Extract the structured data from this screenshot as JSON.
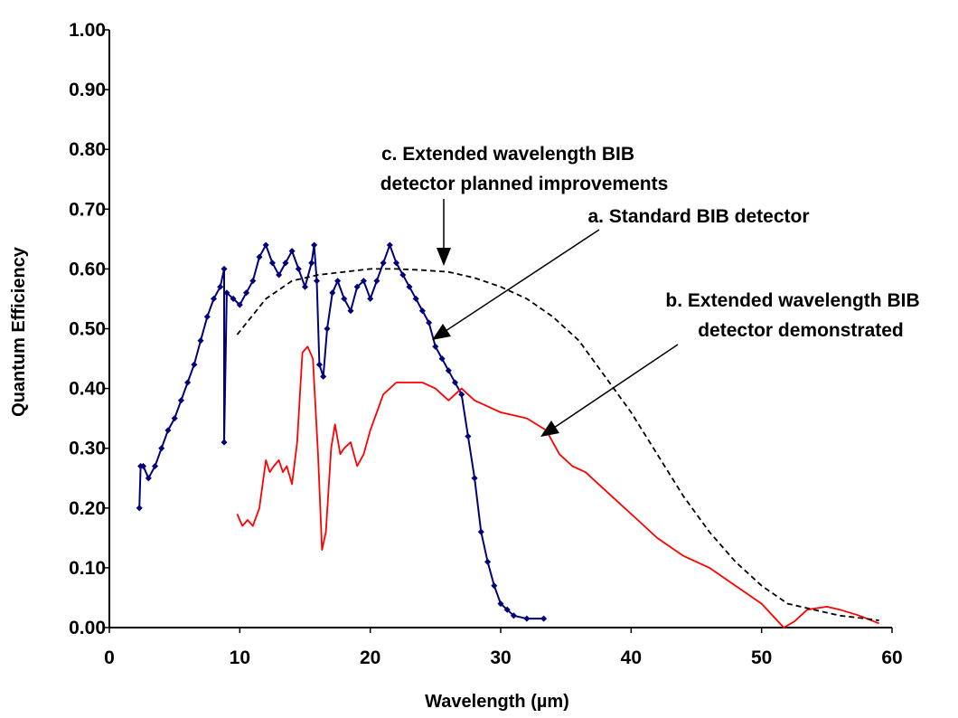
{
  "chart_data": {
    "type": "line",
    "title": "",
    "xlabel": "Wavelength (µm)",
    "ylabel": "Quantum Efficiency",
    "xlim": [
      0,
      60
    ],
    "ylim": [
      0,
      1.0
    ],
    "x_ticks": [
      "0",
      "10",
      "20",
      "30",
      "40",
      "50",
      "60"
    ],
    "y_ticks": [
      "0.00",
      "0.10",
      "0.20",
      "0.30",
      "0.40",
      "0.50",
      "0.60",
      "0.70",
      "0.80",
      "0.90",
      "1.00"
    ],
    "grid": false,
    "legend": "none",
    "series": [
      {
        "name": "a. Standard BIB detector",
        "color": "#00007a",
        "style": "line-with-markers",
        "points": [
          [
            2.3,
            0.2
          ],
          [
            2.4,
            0.27
          ],
          [
            2.6,
            0.27
          ],
          [
            3.0,
            0.25
          ],
          [
            3.5,
            0.27
          ],
          [
            4.0,
            0.3
          ],
          [
            4.5,
            0.33
          ],
          [
            5.0,
            0.35
          ],
          [
            5.5,
            0.38
          ],
          [
            6.0,
            0.41
          ],
          [
            6.5,
            0.44
          ],
          [
            7.0,
            0.48
          ],
          [
            7.5,
            0.52
          ],
          [
            8.0,
            0.55
          ],
          [
            8.5,
            0.57
          ],
          [
            8.8,
            0.6
          ],
          [
            8.8,
            0.31
          ],
          [
            9.0,
            0.56
          ],
          [
            9.5,
            0.55
          ],
          [
            10.0,
            0.54
          ],
          [
            10.5,
            0.56
          ],
          [
            11.0,
            0.58
          ],
          [
            11.5,
            0.62
          ],
          [
            12.0,
            0.64
          ],
          [
            12.5,
            0.61
          ],
          [
            13.0,
            0.59
          ],
          [
            13.5,
            0.61
          ],
          [
            14.0,
            0.63
          ],
          [
            14.5,
            0.6
          ],
          [
            15.0,
            0.57
          ],
          [
            15.5,
            0.61
          ],
          [
            15.7,
            0.64
          ],
          [
            15.9,
            0.58
          ],
          [
            16.1,
            0.44
          ],
          [
            16.4,
            0.42
          ],
          [
            16.7,
            0.5
          ],
          [
            17.1,
            0.56
          ],
          [
            17.5,
            0.58
          ],
          [
            18.0,
            0.55
          ],
          [
            18.5,
            0.53
          ],
          [
            19.0,
            0.57
          ],
          [
            19.5,
            0.58
          ],
          [
            20.0,
            0.55
          ],
          [
            20.5,
            0.58
          ],
          [
            21.0,
            0.61
          ],
          [
            21.5,
            0.64
          ],
          [
            22.0,
            0.61
          ],
          [
            22.5,
            0.59
          ],
          [
            23.0,
            0.57
          ],
          [
            23.5,
            0.55
          ],
          [
            24.0,
            0.53
          ],
          [
            24.5,
            0.51
          ],
          [
            25.0,
            0.47
          ],
          [
            25.5,
            0.45
          ],
          [
            26.0,
            0.43
          ],
          [
            26.5,
            0.41
          ],
          [
            27.0,
            0.39
          ],
          [
            27.5,
            0.32
          ],
          [
            28.0,
            0.25
          ],
          [
            28.5,
            0.16
          ],
          [
            29.0,
            0.11
          ],
          [
            29.5,
            0.07
          ],
          [
            30.0,
            0.04
          ],
          [
            30.5,
            0.03
          ],
          [
            31.0,
            0.02
          ],
          [
            32.0,
            0.015
          ],
          [
            33.3,
            0.015
          ]
        ]
      },
      {
        "name": "b. Extended wavelength BIB detector demonstrated",
        "color": "#ff0000",
        "style": "line",
        "points": [
          [
            9.8,
            0.19
          ],
          [
            10.2,
            0.17
          ],
          [
            10.6,
            0.18
          ],
          [
            11.0,
            0.17
          ],
          [
            11.5,
            0.2
          ],
          [
            12.0,
            0.28
          ],
          [
            12.3,
            0.26
          ],
          [
            12.6,
            0.27
          ],
          [
            13.0,
            0.28
          ],
          [
            13.3,
            0.26
          ],
          [
            13.6,
            0.27
          ],
          [
            14.0,
            0.24
          ],
          [
            14.4,
            0.31
          ],
          [
            14.8,
            0.46
          ],
          [
            15.2,
            0.47
          ],
          [
            15.6,
            0.45
          ],
          [
            16.0,
            0.29
          ],
          [
            16.3,
            0.13
          ],
          [
            16.6,
            0.16
          ],
          [
            17.0,
            0.3
          ],
          [
            17.3,
            0.34
          ],
          [
            17.7,
            0.29
          ],
          [
            18.0,
            0.3
          ],
          [
            18.5,
            0.31
          ],
          [
            19.0,
            0.27
          ],
          [
            19.5,
            0.29
          ],
          [
            20.0,
            0.33
          ],
          [
            21.0,
            0.39
          ],
          [
            22.0,
            0.41
          ],
          [
            23.0,
            0.41
          ],
          [
            24.0,
            0.41
          ],
          [
            25.0,
            0.4
          ],
          [
            26.0,
            0.38
          ],
          [
            27.0,
            0.4
          ],
          [
            28.0,
            0.38
          ],
          [
            29.0,
            0.37
          ],
          [
            30.0,
            0.36
          ],
          [
            31.0,
            0.355
          ],
          [
            32.0,
            0.35
          ],
          [
            33.5,
            0.33
          ],
          [
            34.5,
            0.29
          ],
          [
            35.5,
            0.27
          ],
          [
            36.5,
            0.26
          ],
          [
            37.5,
            0.24
          ],
          [
            39.0,
            0.21
          ],
          [
            40.5,
            0.18
          ],
          [
            42.0,
            0.15
          ],
          [
            44.0,
            0.12
          ],
          [
            46.0,
            0.1
          ],
          [
            48.0,
            0.07
          ],
          [
            50.0,
            0.04
          ],
          [
            51.7,
            0.0
          ],
          [
            52.5,
            0.01
          ],
          [
            53.5,
            0.03
          ],
          [
            55.0,
            0.035
          ],
          [
            56.0,
            0.03
          ],
          [
            57.5,
            0.02
          ],
          [
            59.0,
            0.007
          ]
        ]
      },
      {
        "name": "c. Extended wavelength BIB detector planned improvements",
        "color": "#000000",
        "style": "dashed",
        "points": [
          [
            9.8,
            0.49
          ],
          [
            12.0,
            0.55
          ],
          [
            14.0,
            0.58
          ],
          [
            16.0,
            0.59
          ],
          [
            18.0,
            0.595
          ],
          [
            20.0,
            0.6
          ],
          [
            22.0,
            0.6
          ],
          [
            24.0,
            0.598
          ],
          [
            26.0,
            0.595
          ],
          [
            28.0,
            0.585
          ],
          [
            30.0,
            0.57
          ],
          [
            32.0,
            0.55
          ],
          [
            34.0,
            0.52
          ],
          [
            36.0,
            0.48
          ],
          [
            38.0,
            0.42
          ],
          [
            40.0,
            0.36
          ],
          [
            42.0,
            0.29
          ],
          [
            44.0,
            0.22
          ],
          [
            46.0,
            0.16
          ],
          [
            48.0,
            0.11
          ],
          [
            50.0,
            0.07
          ],
          [
            52.0,
            0.04
          ],
          [
            54.0,
            0.03
          ],
          [
            56.0,
            0.02
          ],
          [
            58.0,
            0.015
          ],
          [
            59.0,
            0.012
          ]
        ]
      }
    ],
    "annotations": [
      {
        "lines": [
          "c. Extended wavelength BIB",
          "detector planned improvements"
        ]
      },
      {
        "lines": [
          "a. Standard BIB detector"
        ]
      },
      {
        "lines": [
          "b. Extended wavelength BIB",
          "detector demonstrated"
        ]
      }
    ]
  }
}
